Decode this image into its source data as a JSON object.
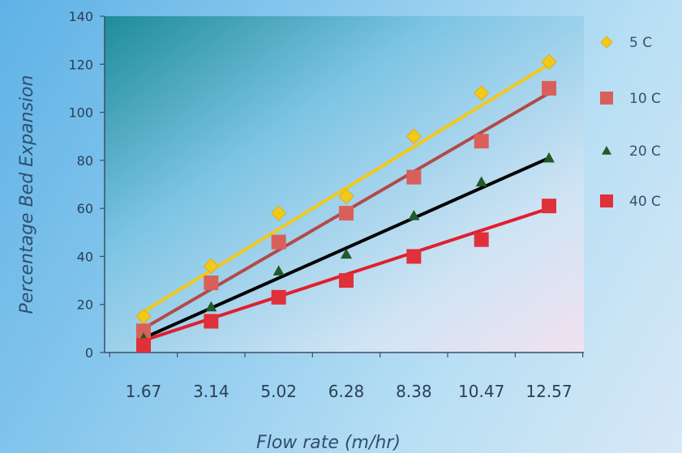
{
  "chart_data": {
    "type": "scatter",
    "title": "",
    "xlabel": "Flow rate (m/hr)",
    "ylabel": "Percentage Bed Expansion",
    "categories": [
      "1.67",
      "3.14",
      "5.02",
      "6.28",
      "8.38",
      "10.47",
      "12.57"
    ],
    "ylim": [
      0,
      140
    ],
    "yticks": [
      "0",
      "20",
      "40",
      "60",
      "80",
      "100",
      "120",
      "140"
    ],
    "legend_position": "right",
    "grid": false,
    "series": [
      {
        "name": "5 C",
        "marker": "diamond",
        "color": "#f2c81a",
        "line_color": "#f2c81a",
        "values": [
          15,
          36,
          58,
          65,
          90,
          108,
          121
        ],
        "trend": [
          17,
          120
        ]
      },
      {
        "name": "10 C",
        "marker": "square",
        "color": "#d9605a",
        "line_color": "#b24a4a",
        "values": [
          9,
          29,
          46,
          58,
          73,
          88,
          110
        ],
        "trend": [
          10,
          108
        ]
      },
      {
        "name": "20 C",
        "marker": "triangle",
        "color": "#1f5a2a",
        "line_color": "#000000",
        "values": [
          6,
          19,
          34,
          41,
          57,
          71,
          81
        ],
        "trend": [
          6,
          81
        ]
      },
      {
        "name": "40 C",
        "marker": "square",
        "color": "#e0303a",
        "line_color": "#e0202e",
        "values": [
          3,
          13,
          23,
          30,
          40,
          47,
          61
        ],
        "trend": [
          5,
          60
        ]
      }
    ]
  }
}
